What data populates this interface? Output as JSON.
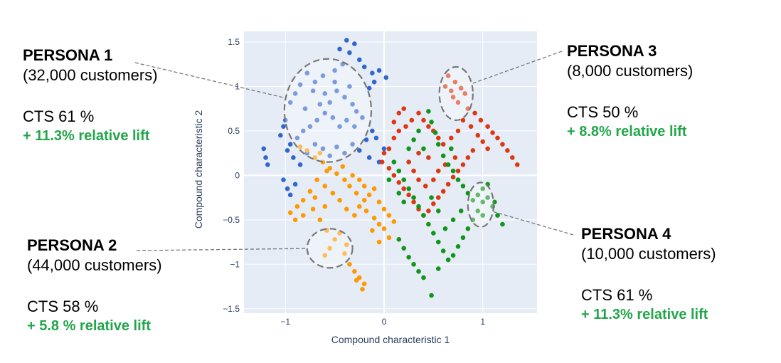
{
  "personas": [
    {
      "id": "p1",
      "title": "PERSONA 1",
      "customers": "(32,000 customers)",
      "cts": "CTS 61 %",
      "lift": "+ 11.3% relative lift"
    },
    {
      "id": "p2",
      "title": "PERSONA 2",
      "customers": "(44,000 customers)",
      "cts": "CTS 58 %",
      "lift": "+ 5.8 % relative lift"
    },
    {
      "id": "p3",
      "title": "PERSONA 3",
      "customers": "(8,000 customers)",
      "cts": "CTS 50 %",
      "lift": "+ 8.8% relative lift"
    },
    {
      "id": "p4",
      "title": "PERSONA 4",
      "customers": "(10,000 customers)",
      "cts": "CTS 61 %",
      "lift": "+ 11.3% relative lift"
    }
  ],
  "colors": {
    "plot_bg": "#e5ecf6",
    "grid": "#ffffff",
    "blue": "#3366cc",
    "orange": "#ff9900",
    "red": "#dc3912",
    "green": "#109618",
    "lift_text": "#22a64a",
    "callout": "#777777"
  },
  "chart_data": {
    "type": "scatter",
    "xlabel": "Compound characteristic 1",
    "ylabel": "Compound characteristic 2",
    "xlim": [
      -1.42,
      1.55
    ],
    "ylim": [
      -1.55,
      1.62
    ],
    "x_ticks": [
      -1,
      0,
      1
    ],
    "x_tick_labels": [
      "−1",
      "0",
      "1"
    ],
    "y_ticks": [
      1.5,
      1,
      0.5,
      0,
      -0.5,
      -1,
      -1.5
    ],
    "y_tick_labels": [
      "1.5",
      "1",
      "0.5",
      "0",
      "−0.5",
      "−1",
      "−1.5"
    ],
    "grid": true,
    "series": [
      {
        "color": "blue",
        "points": [
          [
            -0.38,
            1.52
          ],
          [
            -0.3,
            1.48
          ],
          [
            -0.45,
            1.42
          ],
          [
            -0.35,
            1.38
          ],
          [
            -0.25,
            1.3
          ],
          [
            -0.2,
            1.22
          ],
          [
            -0.12,
            1.15
          ],
          [
            -0.05,
            1.18
          ],
          [
            0.02,
            1.1
          ],
          [
            -0.1,
            1.05
          ],
          [
            -0.15,
            0.98
          ],
          [
            -0.42,
            1.25
          ],
          [
            -0.5,
            1.18
          ],
          [
            -0.62,
            1.12
          ],
          [
            -0.7,
            1.05
          ],
          [
            -0.78,
            1.15
          ],
          [
            -0.85,
            1.02
          ],
          [
            -0.9,
            0.92
          ],
          [
            -0.95,
            0.82
          ],
          [
            -0.72,
            0.95
          ],
          [
            -0.6,
            0.92
          ],
          [
            -0.55,
            0.82
          ],
          [
            -0.48,
            0.95
          ],
          [
            -0.4,
            0.88
          ],
          [
            -0.32,
            0.8
          ],
          [
            -0.28,
            0.72
          ],
          [
            -0.22,
            0.65
          ],
          [
            -0.3,
            0.55
          ],
          [
            -0.38,
            0.62
          ],
          [
            -0.45,
            0.55
          ],
          [
            -0.52,
            0.65
          ],
          [
            -0.6,
            0.7
          ],
          [
            -0.68,
            0.62
          ],
          [
            -0.75,
            0.55
          ],
          [
            -0.82,
            0.5
          ],
          [
            -0.88,
            0.42
          ],
          [
            -0.95,
            0.35
          ],
          [
            -1.0,
            0.62
          ],
          [
            -1.02,
            0.55
          ],
          [
            -1.05,
            0.45
          ],
          [
            -0.98,
            0.28
          ],
          [
            -0.92,
            0.2
          ],
          [
            -0.85,
            0.12
          ],
          [
            -0.78,
            0.25
          ],
          [
            -0.7,
            0.35
          ],
          [
            -0.62,
            0.3
          ],
          [
            -0.55,
            0.22
          ],
          [
            -0.48,
            0.32
          ],
          [
            -0.4,
            0.25
          ],
          [
            -0.32,
            0.35
          ],
          [
            -0.25,
            0.28
          ],
          [
            -0.18,
            0.4
          ],
          [
            -0.12,
            0.5
          ],
          [
            -0.08,
            0.42
          ],
          [
            -0.15,
            0.2
          ],
          [
            -0.05,
            0.15
          ],
          [
            0.0,
            0.3
          ],
          [
            -1.22,
            0.3
          ],
          [
            -1.2,
            0.2
          ],
          [
            -1.18,
            0.12
          ],
          [
            -1.02,
            -0.05
          ],
          [
            -0.98,
            -0.15
          ],
          [
            -0.9,
            -0.1
          ],
          [
            -0.95,
            -0.22
          ],
          [
            -0.35,
            1.0
          ],
          [
            -0.5,
            1.05
          ],
          [
            -0.65,
            0.8
          ],
          [
            -0.8,
            0.75
          ]
        ]
      },
      {
        "color": "orange",
        "points": [
          [
            -0.85,
            0.32
          ],
          [
            -0.78,
            0.28
          ],
          [
            -0.7,
            0.2
          ],
          [
            -0.62,
            0.15
          ],
          [
            -0.55,
            0.08
          ],
          [
            -0.48,
            0.02
          ],
          [
            -0.4,
            -0.05
          ],
          [
            -0.35,
            -0.12
          ],
          [
            -0.28,
            -0.2
          ],
          [
            -0.2,
            -0.28
          ],
          [
            -0.15,
            -0.22
          ],
          [
            -0.1,
            -0.15
          ],
          [
            -0.05,
            -0.3
          ],
          [
            0.0,
            -0.38
          ],
          [
            0.05,
            -0.45
          ],
          [
            0.1,
            -0.52
          ],
          [
            -0.05,
            -0.55
          ],
          [
            -0.1,
            -0.48
          ],
          [
            -0.18,
            -0.4
          ],
          [
            -0.25,
            -0.35
          ],
          [
            -0.3,
            -0.45
          ],
          [
            -0.38,
            -0.38
          ],
          [
            -0.45,
            -0.28
          ],
          [
            -0.52,
            -0.2
          ],
          [
            -0.6,
            -0.12
          ],
          [
            -0.68,
            -0.05
          ],
          [
            -0.75,
            -0.18
          ],
          [
            -0.82,
            -0.28
          ],
          [
            -0.88,
            -0.35
          ],
          [
            -0.95,
            -0.42
          ],
          [
            -0.9,
            -0.5
          ],
          [
            -0.82,
            -0.45
          ],
          [
            -0.72,
            -0.38
          ],
          [
            -0.65,
            -0.5
          ],
          [
            -0.58,
            -0.62
          ],
          [
            -0.5,
            -0.72
          ],
          [
            -0.45,
            -0.65
          ],
          [
            -0.38,
            -0.78
          ],
          [
            -0.55,
            -0.82
          ],
          [
            -0.6,
            -0.9
          ],
          [
            -0.4,
            -0.88
          ],
          [
            -0.35,
            -1.0
          ],
          [
            -0.3,
            -1.08
          ],
          [
            -0.25,
            -1.15
          ],
          [
            -0.2,
            -1.22
          ],
          [
            -0.22,
            -1.28
          ],
          [
            -0.28,
            -1.18
          ],
          [
            -0.2,
            -0.12
          ],
          [
            0.0,
            -0.6
          ],
          [
            0.05,
            -0.7
          ],
          [
            -0.05,
            -0.75
          ],
          [
            -0.12,
            -0.62
          ],
          [
            -0.65,
            0.25
          ],
          [
            -0.58,
            0.05
          ],
          [
            -0.42,
            0.1
          ],
          [
            -0.32,
            0.0
          ],
          [
            -0.25,
            -0.05
          ],
          [
            -0.6,
            -0.35
          ],
          [
            -0.7,
            -0.25
          ]
        ]
      },
      {
        "color": "red",
        "points": [
          [
            0.65,
            1.12
          ],
          [
            0.72,
            1.05
          ],
          [
            0.78,
            0.98
          ],
          [
            0.82,
            0.92
          ],
          [
            0.7,
            0.88
          ],
          [
            0.75,
            0.82
          ],
          [
            0.68,
            0.95
          ],
          [
            0.62,
            1.0
          ],
          [
            0.85,
            0.75
          ],
          [
            0.92,
            0.7
          ],
          [
            0.98,
            0.62
          ],
          [
            1.05,
            0.55
          ],
          [
            1.1,
            0.48
          ],
          [
            1.15,
            0.42
          ],
          [
            1.2,
            0.35
          ],
          [
            1.25,
            0.28
          ],
          [
            1.3,
            0.2
          ],
          [
            1.35,
            0.12
          ],
          [
            0.95,
            0.45
          ],
          [
            1.0,
            0.38
          ],
          [
            1.05,
            0.3
          ],
          [
            0.88,
            0.55
          ],
          [
            0.8,
            0.62
          ],
          [
            0.75,
            0.5
          ],
          [
            0.68,
            0.42
          ],
          [
            0.6,
            0.35
          ],
          [
            0.55,
            0.42
          ],
          [
            0.5,
            0.5
          ],
          [
            0.45,
            0.55
          ],
          [
            0.4,
            0.62
          ],
          [
            0.35,
            0.7
          ],
          [
            0.28,
            0.62
          ],
          [
            0.22,
            0.55
          ],
          [
            0.15,
            0.5
          ],
          [
            0.1,
            0.42
          ],
          [
            0.05,
            0.3
          ],
          [
            0.0,
            0.25
          ],
          [
            -0.02,
            0.15
          ],
          [
            0.05,
            0.08
          ],
          [
            0.1,
            0.0
          ],
          [
            0.15,
            -0.08
          ],
          [
            0.2,
            -0.15
          ],
          [
            0.25,
            -0.22
          ],
          [
            0.3,
            -0.3
          ],
          [
            0.35,
            -0.38
          ],
          [
            0.4,
            -0.45
          ],
          [
            0.45,
            -0.4
          ],
          [
            0.5,
            -0.32
          ],
          [
            0.55,
            -0.25
          ],
          [
            0.6,
            -0.18
          ],
          [
            0.65,
            -0.1
          ],
          [
            0.7,
            -0.02
          ],
          [
            0.75,
            0.05
          ],
          [
            0.8,
            0.12
          ],
          [
            0.85,
            0.2
          ],
          [
            0.9,
            0.28
          ],
          [
            0.62,
            0.12
          ],
          [
            0.55,
            0.05
          ],
          [
            0.5,
            -0.05
          ],
          [
            0.42,
            -0.12
          ],
          [
            0.35,
            -0.05
          ],
          [
            0.3,
            0.05
          ],
          [
            0.25,
            0.15
          ],
          [
            0.35,
            0.25
          ],
          [
            0.45,
            0.2
          ],
          [
            0.72,
            0.2
          ],
          [
            0.15,
            0.7
          ],
          [
            0.1,
            0.6
          ],
          [
            0.2,
            0.75
          ]
        ]
      },
      {
        "color": "green",
        "points": [
          [
            0.45,
            0.72
          ],
          [
            0.48,
            0.6
          ],
          [
            0.52,
            0.48
          ],
          [
            0.55,
            0.35
          ],
          [
            0.6,
            0.22
          ],
          [
            0.65,
            0.12
          ],
          [
            0.7,
            0.05
          ],
          [
            0.75,
            -0.05
          ],
          [
            0.8,
            -0.12
          ],
          [
            0.85,
            -0.2
          ],
          [
            0.9,
            -0.28
          ],
          [
            0.95,
            -0.22
          ],
          [
            1.0,
            -0.15
          ],
          [
            1.05,
            -0.25
          ],
          [
            1.1,
            -0.35
          ],
          [
            1.15,
            -0.45
          ],
          [
            1.2,
            -0.55
          ],
          [
            1.0,
            -0.3
          ],
          [
            0.95,
            -0.4
          ],
          [
            0.9,
            -0.5
          ],
          [
            0.85,
            -0.6
          ],
          [
            0.8,
            -0.7
          ],
          [
            0.75,
            -0.8
          ],
          [
            0.7,
            -0.9
          ],
          [
            0.65,
            -0.95
          ],
          [
            0.6,
            -0.85
          ],
          [
            0.55,
            -0.75
          ],
          [
            0.5,
            -0.65
          ],
          [
            0.45,
            -0.55
          ],
          [
            0.4,
            -0.45
          ],
          [
            0.35,
            -0.35
          ],
          [
            0.3,
            -0.25
          ],
          [
            0.25,
            -0.15
          ],
          [
            0.2,
            -0.05
          ],
          [
            0.15,
            0.05
          ],
          [
            0.1,
            0.15
          ],
          [
            0.05,
            -0.05
          ],
          [
            0.15,
            -0.2
          ],
          [
            0.2,
            -0.3
          ],
          [
            0.15,
            -0.72
          ],
          [
            0.2,
            -0.82
          ],
          [
            0.25,
            -0.92
          ],
          [
            0.3,
            -1.0
          ],
          [
            0.35,
            -1.08
          ],
          [
            0.4,
            -1.15
          ],
          [
            0.48,
            -1.35
          ],
          [
            0.55,
            -1.05
          ],
          [
            0.62,
            -0.6
          ],
          [
            0.7,
            -0.5
          ],
          [
            0.78,
            -0.4
          ],
          [
            0.55,
            -0.4
          ],
          [
            0.48,
            -0.25
          ],
          [
            1.05,
            -0.1
          ],
          [
            1.12,
            -0.3
          ],
          [
            1.0,
            -0.45
          ],
          [
            0.35,
            0.5
          ],
          [
            0.3,
            0.4
          ],
          [
            0.25,
            0.3
          ],
          [
            0.4,
            0.3
          ],
          [
            0.68,
            0.3
          ]
        ]
      }
    ],
    "ellipses": [
      {
        "persona": "p1",
        "cx": -0.57,
        "cy": 0.73,
        "rx": 0.44,
        "ry": 0.58
      },
      {
        "persona": "p3",
        "cx": 0.73,
        "cy": 0.92,
        "rx": 0.17,
        "ry": 0.3
      },
      {
        "persona": "p2",
        "cx": -0.55,
        "cy": -0.82,
        "rx": 0.23,
        "ry": 0.22
      },
      {
        "persona": "p4",
        "cx": 0.98,
        "cy": -0.33,
        "rx": 0.13,
        "ry": 0.25
      }
    ]
  }
}
